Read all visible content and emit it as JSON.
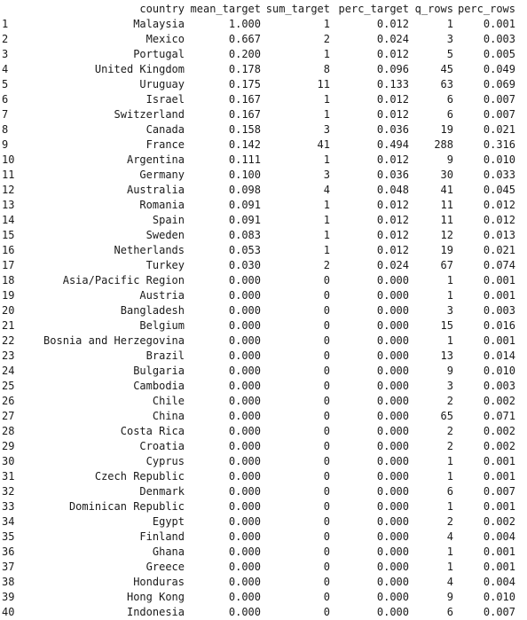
{
  "columns": [
    "country",
    "mean_target",
    "sum_target",
    "perc_target",
    "q_rows",
    "perc_rows"
  ],
  "rows": [
    {
      "i": "1",
      "country": "Malaysia",
      "mean": "1.000",
      "sum": "1",
      "pt": "0.012",
      "q": "1",
      "pr": "0.001"
    },
    {
      "i": "2",
      "country": "Mexico",
      "mean": "0.667",
      "sum": "2",
      "pt": "0.024",
      "q": "3",
      "pr": "0.003"
    },
    {
      "i": "3",
      "country": "Portugal",
      "mean": "0.200",
      "sum": "1",
      "pt": "0.012",
      "q": "5",
      "pr": "0.005"
    },
    {
      "i": "4",
      "country": "United Kingdom",
      "mean": "0.178",
      "sum": "8",
      "pt": "0.096",
      "q": "45",
      "pr": "0.049"
    },
    {
      "i": "5",
      "country": "Uruguay",
      "mean": "0.175",
      "sum": "11",
      "pt": "0.133",
      "q": "63",
      "pr": "0.069"
    },
    {
      "i": "6",
      "country": "Israel",
      "mean": "0.167",
      "sum": "1",
      "pt": "0.012",
      "q": "6",
      "pr": "0.007"
    },
    {
      "i": "7",
      "country": "Switzerland",
      "mean": "0.167",
      "sum": "1",
      "pt": "0.012",
      "q": "6",
      "pr": "0.007"
    },
    {
      "i": "8",
      "country": "Canada",
      "mean": "0.158",
      "sum": "3",
      "pt": "0.036",
      "q": "19",
      "pr": "0.021"
    },
    {
      "i": "9",
      "country": "France",
      "mean": "0.142",
      "sum": "41",
      "pt": "0.494",
      "q": "288",
      "pr": "0.316"
    },
    {
      "i": "10",
      "country": "Argentina",
      "mean": "0.111",
      "sum": "1",
      "pt": "0.012",
      "q": "9",
      "pr": "0.010"
    },
    {
      "i": "11",
      "country": "Germany",
      "mean": "0.100",
      "sum": "3",
      "pt": "0.036",
      "q": "30",
      "pr": "0.033"
    },
    {
      "i": "12",
      "country": "Australia",
      "mean": "0.098",
      "sum": "4",
      "pt": "0.048",
      "q": "41",
      "pr": "0.045"
    },
    {
      "i": "13",
      "country": "Romania",
      "mean": "0.091",
      "sum": "1",
      "pt": "0.012",
      "q": "11",
      "pr": "0.012"
    },
    {
      "i": "14",
      "country": "Spain",
      "mean": "0.091",
      "sum": "1",
      "pt": "0.012",
      "q": "11",
      "pr": "0.012"
    },
    {
      "i": "15",
      "country": "Sweden",
      "mean": "0.083",
      "sum": "1",
      "pt": "0.012",
      "q": "12",
      "pr": "0.013"
    },
    {
      "i": "16",
      "country": "Netherlands",
      "mean": "0.053",
      "sum": "1",
      "pt": "0.012",
      "q": "19",
      "pr": "0.021"
    },
    {
      "i": "17",
      "country": "Turkey",
      "mean": "0.030",
      "sum": "2",
      "pt": "0.024",
      "q": "67",
      "pr": "0.074"
    },
    {
      "i": "18",
      "country": "Asia/Pacific Region",
      "mean": "0.000",
      "sum": "0",
      "pt": "0.000",
      "q": "1",
      "pr": "0.001"
    },
    {
      "i": "19",
      "country": "Austria",
      "mean": "0.000",
      "sum": "0",
      "pt": "0.000",
      "q": "1",
      "pr": "0.001"
    },
    {
      "i": "20",
      "country": "Bangladesh",
      "mean": "0.000",
      "sum": "0",
      "pt": "0.000",
      "q": "3",
      "pr": "0.003"
    },
    {
      "i": "21",
      "country": "Belgium",
      "mean": "0.000",
      "sum": "0",
      "pt": "0.000",
      "q": "15",
      "pr": "0.016"
    },
    {
      "i": "22",
      "country": "Bosnia and Herzegovina",
      "mean": "0.000",
      "sum": "0",
      "pt": "0.000",
      "q": "1",
      "pr": "0.001"
    },
    {
      "i": "23",
      "country": "Brazil",
      "mean": "0.000",
      "sum": "0",
      "pt": "0.000",
      "q": "13",
      "pr": "0.014"
    },
    {
      "i": "24",
      "country": "Bulgaria",
      "mean": "0.000",
      "sum": "0",
      "pt": "0.000",
      "q": "9",
      "pr": "0.010"
    },
    {
      "i": "25",
      "country": "Cambodia",
      "mean": "0.000",
      "sum": "0",
      "pt": "0.000",
      "q": "3",
      "pr": "0.003"
    },
    {
      "i": "26",
      "country": "Chile",
      "mean": "0.000",
      "sum": "0",
      "pt": "0.000",
      "q": "2",
      "pr": "0.002"
    },
    {
      "i": "27",
      "country": "China",
      "mean": "0.000",
      "sum": "0",
      "pt": "0.000",
      "q": "65",
      "pr": "0.071"
    },
    {
      "i": "28",
      "country": "Costa Rica",
      "mean": "0.000",
      "sum": "0",
      "pt": "0.000",
      "q": "2",
      "pr": "0.002"
    },
    {
      "i": "29",
      "country": "Croatia",
      "mean": "0.000",
      "sum": "0",
      "pt": "0.000",
      "q": "2",
      "pr": "0.002"
    },
    {
      "i": "30",
      "country": "Cyprus",
      "mean": "0.000",
      "sum": "0",
      "pt": "0.000",
      "q": "1",
      "pr": "0.001"
    },
    {
      "i": "31",
      "country": "Czech Republic",
      "mean": "0.000",
      "sum": "0",
      "pt": "0.000",
      "q": "1",
      "pr": "0.001"
    },
    {
      "i": "32",
      "country": "Denmark",
      "mean": "0.000",
      "sum": "0",
      "pt": "0.000",
      "q": "6",
      "pr": "0.007"
    },
    {
      "i": "33",
      "country": "Dominican Republic",
      "mean": "0.000",
      "sum": "0",
      "pt": "0.000",
      "q": "1",
      "pr": "0.001"
    },
    {
      "i": "34",
      "country": "Egypt",
      "mean": "0.000",
      "sum": "0",
      "pt": "0.000",
      "q": "2",
      "pr": "0.002"
    },
    {
      "i": "35",
      "country": "Finland",
      "mean": "0.000",
      "sum": "0",
      "pt": "0.000",
      "q": "4",
      "pr": "0.004"
    },
    {
      "i": "36",
      "country": "Ghana",
      "mean": "0.000",
      "sum": "0",
      "pt": "0.000",
      "q": "1",
      "pr": "0.001"
    },
    {
      "i": "37",
      "country": "Greece",
      "mean": "0.000",
      "sum": "0",
      "pt": "0.000",
      "q": "1",
      "pr": "0.001"
    },
    {
      "i": "38",
      "country": "Honduras",
      "mean": "0.000",
      "sum": "0",
      "pt": "0.000",
      "q": "4",
      "pr": "0.004"
    },
    {
      "i": "39",
      "country": "Hong Kong",
      "mean": "0.000",
      "sum": "0",
      "pt": "0.000",
      "q": "9",
      "pr": "0.010"
    },
    {
      "i": "40",
      "country": "Indonesia",
      "mean": "0.000",
      "sum": "0",
      "pt": "0.000",
      "q": "6",
      "pr": "0.007"
    }
  ]
}
